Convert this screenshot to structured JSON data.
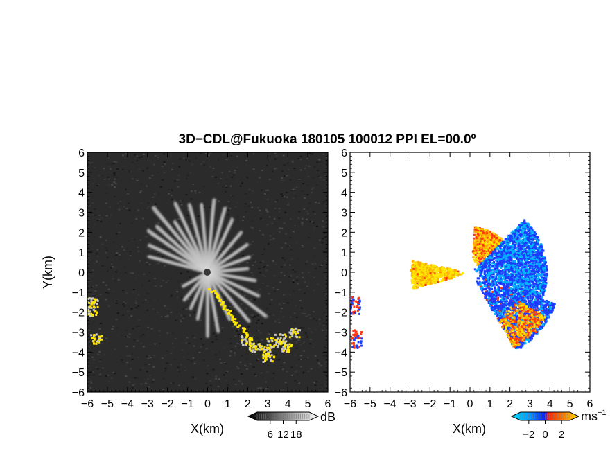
{
  "chart_data": [
    {
      "type": "heatmap",
      "panel": "reflectivity",
      "title": "3D−CDL@Fukuoka 180105 100012 PPI EL=00.0º",
      "xlabel": "X(km)",
      "ylabel": "Y(km)",
      "xlim": [
        -6,
        6
      ],
      "ylim": [
        -6,
        6
      ],
      "xticks": [
        "−6",
        "−5",
        "−4",
        "−3",
        "−2",
        "−1",
        "0",
        "1",
        "2",
        "3",
        "4",
        "5",
        "6"
      ],
      "yticks": [
        "−6",
        "−5",
        "−4",
        "−3",
        "−2",
        "−1",
        "0",
        "1",
        "2",
        "3",
        "4",
        "5",
        "6"
      ],
      "colorbar": {
        "unit": "dB",
        "ticks": [
          "6",
          "12",
          "18"
        ],
        "range": [
          0,
          24
        ]
      },
      "background_color": "#2a2a2a",
      "highlight_color": "#ffe600",
      "rays": [
        {
          "az": -55,
          "len": 3.6
        },
        {
          "az": -48,
          "len": 3.4
        },
        {
          "az": -40,
          "len": 4.2
        },
        {
          "az": -33,
          "len": 3.0
        },
        {
          "az": -25,
          "len": 3.8
        },
        {
          "az": -15,
          "len": 3.5
        },
        {
          "az": -5,
          "len": 3.4
        },
        {
          "az": 5,
          "len": 3.6
        },
        {
          "az": 15,
          "len": 3.3
        },
        {
          "az": 25,
          "len": 2.9
        },
        {
          "az": 40,
          "len": 2.6
        },
        {
          "az": 55,
          "len": 2.4
        },
        {
          "az": 70,
          "len": 2.2
        },
        {
          "az": 85,
          "len": 2.0
        },
        {
          "az": 100,
          "len": 2.4
        },
        {
          "az": 115,
          "len": 2.8
        },
        {
          "az": 127,
          "len": 3.6
        },
        {
          "az": 140,
          "len": 3.2
        },
        {
          "az": 155,
          "len": 2.6
        },
        {
          "az": 170,
          "len": 3.0
        },
        {
          "az": 180,
          "len": 3.2
        },
        {
          "az": 192,
          "len": 2.4
        },
        {
          "az": 205,
          "len": 2.0
        },
        {
          "az": 220,
          "len": 1.8
        },
        {
          "az": 240,
          "len": 1.4
        },
        {
          "az": -75,
          "len": 3.0
        },
        {
          "az": -65,
          "len": 3.2
        }
      ],
      "echo_patches": [
        {
          "x": 2.3,
          "y": -3.7
        },
        {
          "x": 2.8,
          "y": -3.9
        },
        {
          "x": 3.2,
          "y": -3.5
        },
        {
          "x": 3.6,
          "y": -3.3
        },
        {
          "x": 3.9,
          "y": -3.7
        },
        {
          "x": 4.3,
          "y": -3.0
        },
        {
          "x": 3.0,
          "y": -4.2
        },
        {
          "x": -5.8,
          "y": -1.5
        },
        {
          "x": -5.8,
          "y": -1.9
        },
        {
          "x": -5.6,
          "y": -3.3
        },
        {
          "x": 1.9,
          "y": -3.4
        }
      ]
    },
    {
      "type": "heatmap",
      "panel": "doppler-velocity",
      "xlabel": "X(km)",
      "xlim": [
        -6,
        6
      ],
      "ylim": [
        -6,
        6
      ],
      "xticks": [
        "−6",
        "−5",
        "−4",
        "−3",
        "−2",
        "−1",
        "0",
        "1",
        "2",
        "3",
        "4",
        "5",
        "6"
      ],
      "yticks": [
        "−6",
        "−5",
        "−4",
        "−3",
        "−2",
        "−1",
        "0",
        "1",
        "2",
        "3",
        "4",
        "5",
        "6"
      ],
      "colorbar": {
        "unit": "ms",
        "unit_exponent": "−1",
        "ticks": [
          "−2",
          "0",
          "2"
        ],
        "range": [
          -3,
          3
        ]
      },
      "colors": {
        "strong_negative": "#00b4ff",
        "negative": "#1e3cff",
        "positive": "#ff3a10",
        "strong_positive": "#ffb000",
        "max": "#ffe600"
      },
      "velocity_regions": [
        {
          "name": "upwind-west",
          "az_from": 255,
          "az_to": 282,
          "r": [
            0.3,
            3.0
          ],
          "v": 2.2
        },
        {
          "name": "north-east",
          "az_from": 5,
          "az_to": 45,
          "r": [
            0.5,
            2.3
          ],
          "v": 1.6
        },
        {
          "name": "east",
          "az_from": 45,
          "az_to": 110,
          "r": [
            0.2,
            3.8
          ],
          "v": -1.3
        },
        {
          "name": "south-east",
          "az_from": 110,
          "az_to": 150,
          "r": [
            0.3,
            4.5
          ],
          "v": -1.0
        },
        {
          "name": "south-east-edge",
          "az_from": 120,
          "az_to": 150,
          "r": [
            2.5,
            4.3
          ],
          "v": 1.4
        }
      ]
    }
  ]
}
